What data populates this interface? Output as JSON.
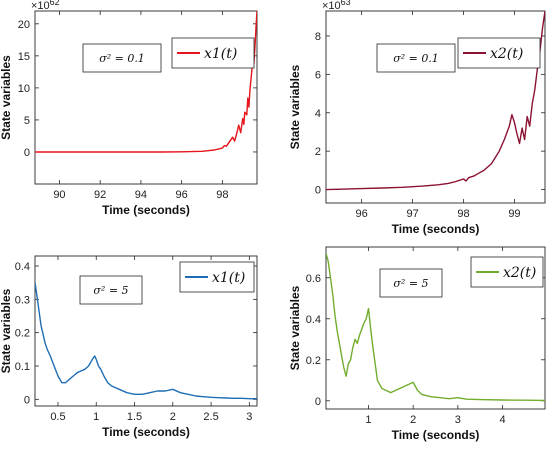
{
  "chart_data": [
    {
      "type": "line",
      "exponent_label": "×10^62",
      "xlabel": "Time (seconds)",
      "ylabel": "State variables",
      "xlim": [
        88.8,
        99.7
      ],
      "ylim": [
        -5,
        22
      ],
      "xticks": [
        90,
        92,
        94,
        96,
        98
      ],
      "yticks": [
        0,
        5,
        10,
        15,
        20
      ],
      "annotation": "σ² = 0.1",
      "legend_position": "top-right",
      "series": [
        {
          "name": "x1(t)",
          "color": "#e8141b",
          "x": [
            88.8,
            90,
            92,
            94,
            95,
            96,
            96.5,
            97,
            97.3,
            97.6,
            97.8,
            98.0,
            98.1,
            98.2,
            98.35,
            98.5,
            98.6,
            98.7,
            98.8,
            98.9,
            99.0,
            99.05,
            99.1,
            99.2,
            99.25,
            99.3,
            99.35,
            99.4,
            99.45,
            99.5,
            99.55,
            99.6,
            99.65,
            99.7
          ],
          "y": [
            0,
            0,
            0,
            0,
            0,
            0.02,
            0.05,
            0.1,
            0.2,
            0.3,
            0.45,
            0.6,
            1.0,
            0.9,
            1.6,
            2.3,
            1.7,
            2.8,
            4.2,
            3.0,
            5.2,
            4.3,
            6.2,
            5.8,
            8.4,
            7.0,
            9.6,
            11.2,
            12.8,
            14.5,
            13.8,
            16.5,
            19.5,
            22
          ]
        }
      ]
    },
    {
      "type": "line",
      "exponent_label": "×10^63",
      "xlabel": "Time (seconds)",
      "ylabel": "State variables",
      "xlim": [
        95.3,
        99.6
      ],
      "ylim": [
        -0.7,
        9.3
      ],
      "xticks": [
        96,
        97,
        98,
        99
      ],
      "yticks": [
        0,
        2,
        4,
        6,
        8
      ],
      "annotation": "σ² = 0.1",
      "legend_position": "top-right",
      "series": [
        {
          "name": "x2(t)",
          "color": "#8b1231",
          "x": [
            95.3,
            95.6,
            96.0,
            96.4,
            96.8,
            97.0,
            97.2,
            97.5,
            97.7,
            97.85,
            98.0,
            98.05,
            98.1,
            98.2,
            98.3,
            98.4,
            98.55,
            98.7,
            98.8,
            98.9,
            98.95,
            99.0,
            99.05,
            99.1,
            99.15,
            99.2,
            99.25,
            99.3,
            99.35,
            99.4,
            99.45,
            99.5,
            99.55,
            99.6
          ],
          "y": [
            0,
            0.02,
            0.05,
            0.08,
            0.12,
            0.15,
            0.18,
            0.25,
            0.32,
            0.42,
            0.55,
            0.45,
            0.62,
            0.7,
            0.85,
            1.0,
            1.35,
            2.0,
            2.6,
            3.3,
            3.9,
            3.5,
            2.9,
            2.4,
            3.2,
            2.6,
            3.8,
            3.3,
            4.5,
            5.2,
            6.3,
            7.2,
            8.4,
            9.3
          ]
        }
      ]
    },
    {
      "type": "line",
      "xlabel": "Time (seconds)",
      "ylabel": "State variables",
      "xlim": [
        0.2,
        3.1
      ],
      "ylim": [
        -0.02,
        0.43
      ],
      "xticks": [
        0.5,
        1,
        1.5,
        2,
        2.5,
        3
      ],
      "yticks": [
        0,
        0.1,
        0.2,
        0.3,
        0.4
      ],
      "annotation": "σ² = 5",
      "legend_position": "top-right",
      "series": [
        {
          "name": "x1(t)",
          "color": "#1f6eb5",
          "x": [
            0.2,
            0.22,
            0.25,
            0.28,
            0.3,
            0.33,
            0.36,
            0.4,
            0.45,
            0.5,
            0.55,
            0.6,
            0.65,
            0.7,
            0.75,
            0.8,
            0.85,
            0.9,
            0.95,
            0.98,
            1.0,
            1.03,
            1.06,
            1.1,
            1.15,
            1.2,
            1.3,
            1.4,
            1.5,
            1.6,
            1.7,
            1.8,
            1.9,
            2.0,
            2.1,
            2.2,
            2.3,
            2.4,
            2.5,
            2.6,
            2.7,
            2.8,
            2.9,
            3.0,
            3.1
          ],
          "y": [
            0.35,
            0.32,
            0.27,
            0.22,
            0.2,
            0.17,
            0.15,
            0.13,
            0.1,
            0.07,
            0.05,
            0.05,
            0.06,
            0.07,
            0.08,
            0.085,
            0.09,
            0.1,
            0.12,
            0.13,
            0.12,
            0.1,
            0.09,
            0.07,
            0.05,
            0.04,
            0.03,
            0.02,
            0.015,
            0.015,
            0.02,
            0.025,
            0.025,
            0.03,
            0.02,
            0.015,
            0.01,
            0.008,
            0.006,
            0.005,
            0.004,
            0.003,
            0.003,
            0.002,
            0.002
          ]
        }
      ]
    },
    {
      "type": "line",
      "xlabel": "Time (seconds)",
      "ylabel": "State variables",
      "xlim": [
        0.05,
        4.95
      ],
      "ylim": [
        -0.04,
        0.75
      ],
      "xticks": [
        1,
        2,
        3,
        4
      ],
      "yticks": [
        0,
        0.2,
        0.4,
        0.6
      ],
      "annotation": "σ² = 5",
      "legend_position": "top-right",
      "series": [
        {
          "name": "x2(t)",
          "color": "#72ad2e",
          "x": [
            0.05,
            0.1,
            0.15,
            0.2,
            0.25,
            0.3,
            0.35,
            0.4,
            0.45,
            0.5,
            0.55,
            0.6,
            0.65,
            0.7,
            0.75,
            0.8,
            0.85,
            0.9,
            0.95,
            1.0,
            1.05,
            1.1,
            1.15,
            1.2,
            1.3,
            1.4,
            1.5,
            1.6,
            1.7,
            1.8,
            1.9,
            2.0,
            2.1,
            2.2,
            2.4,
            2.6,
            2.8,
            3.0,
            3.2,
            3.5,
            4.0,
            4.5,
            4.95
          ],
          "y": [
            0.72,
            0.68,
            0.6,
            0.52,
            0.42,
            0.34,
            0.28,
            0.22,
            0.16,
            0.12,
            0.18,
            0.2,
            0.26,
            0.3,
            0.28,
            0.32,
            0.35,
            0.38,
            0.4,
            0.45,
            0.35,
            0.26,
            0.18,
            0.1,
            0.06,
            0.05,
            0.04,
            0.05,
            0.06,
            0.07,
            0.08,
            0.09,
            0.05,
            0.03,
            0.02,
            0.015,
            0.01,
            0.015,
            0.008,
            0.006,
            0.004,
            0.003,
            0.002
          ]
        }
      ]
    }
  ]
}
